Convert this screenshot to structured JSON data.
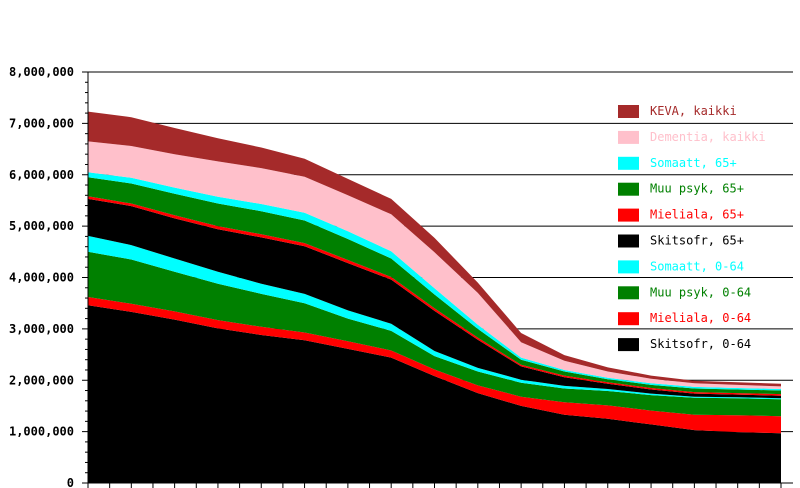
{
  "chart_data": {
    "type": "area",
    "stacked": true,
    "title": "",
    "xlabel": "",
    "ylabel": "",
    "ylim": [
      0,
      8000000
    ],
    "yticks": [
      "0",
      "1,000,000",
      "2,000,000",
      "3,000,000",
      "4,000,000",
      "5,000,000",
      "6,000,000",
      "7,000,000",
      "8,000,000"
    ],
    "grid": true,
    "legend_position": "top-right",
    "x": [
      0,
      2,
      4,
      6,
      8,
      10,
      12,
      14,
      16,
      18,
      20,
      22,
      24,
      26,
      28,
      30,
      32
    ],
    "series": [
      {
        "name": "Skitsofr, 0-64",
        "color": "#000000",
        "values": [
          3460000,
          3330000,
          3180000,
          3010000,
          2880000,
          2780000,
          2610000,
          2440000,
          2080000,
          1750000,
          1500000,
          1330000,
          1250000,
          1140000,
          1030000,
          990000,
          970000
        ]
      },
      {
        "name": "Mieliala, 0-64",
        "color": "#ff0000",
        "values": [
          160000,
          160000,
          160000,
          160000,
          160000,
          150000,
          150000,
          140000,
          130000,
          150000,
          180000,
          240000,
          260000,
          270000,
          300000,
          330000,
          330000
        ]
      },
      {
        "name": "Muu psyk, 0-64",
        "color": "#008000",
        "values": [
          880000,
          860000,
          770000,
          710000,
          640000,
          570000,
          440000,
          380000,
          260000,
          270000,
          270000,
          270000,
          280000,
          300000,
          330000,
          330000,
          330000
        ]
      },
      {
        "name": "Somaatt, 0-64",
        "color": "#00ffff",
        "values": [
          310000,
          280000,
          260000,
          230000,
          200000,
          180000,
          160000,
          140000,
          100000,
          70000,
          60000,
          50000,
          40000,
          30000,
          20000,
          20000,
          20000
        ]
      },
      {
        "name": "Skitsofr, 65+",
        "color": "#000000",
        "values": [
          720000,
          760000,
          780000,
          830000,
          900000,
          930000,
          920000,
          860000,
          780000,
          550000,
          260000,
          170000,
          100000,
          80000,
          60000,
          50000,
          50000
        ]
      },
      {
        "name": "Mieliala, 65+",
        "color": "#ff0000",
        "values": [
          50000,
          50000,
          60000,
          60000,
          60000,
          60000,
          60000,
          50000,
          50000,
          40000,
          30000,
          30000,
          30000,
          30000,
          30000,
          30000,
          30000
        ]
      },
      {
        "name": "Muu psyk, 65+",
        "color": "#008000",
        "values": [
          370000,
          390000,
          420000,
          440000,
          450000,
          440000,
          410000,
          360000,
          270000,
          170000,
          100000,
          80000,
          60000,
          60000,
          70000,
          70000,
          70000
        ]
      },
      {
        "name": "Somaatt, 65+",
        "color": "#00ffff",
        "values": [
          100000,
          110000,
          120000,
          130000,
          140000,
          150000,
          150000,
          140000,
          120000,
          80000,
          40000,
          30000,
          30000,
          30000,
          30000,
          30000,
          30000
        ]
      },
      {
        "name": "Dementia, kaikki",
        "color": "#ffc0cb",
        "values": [
          600000,
          620000,
          650000,
          690000,
          700000,
          700000,
          700000,
          720000,
          700000,
          620000,
          300000,
          180000,
          120000,
          90000,
          70000,
          60000,
          50000
        ]
      },
      {
        "name": "KEVA, kaikki",
        "color": "#a52a2a",
        "values": [
          580000,
          560000,
          510000,
          450000,
          400000,
          350000,
          320000,
          300000,
          280000,
          200000,
          180000,
          110000,
          80000,
          60000,
          50000,
          50000,
          50000
        ]
      }
    ]
  }
}
